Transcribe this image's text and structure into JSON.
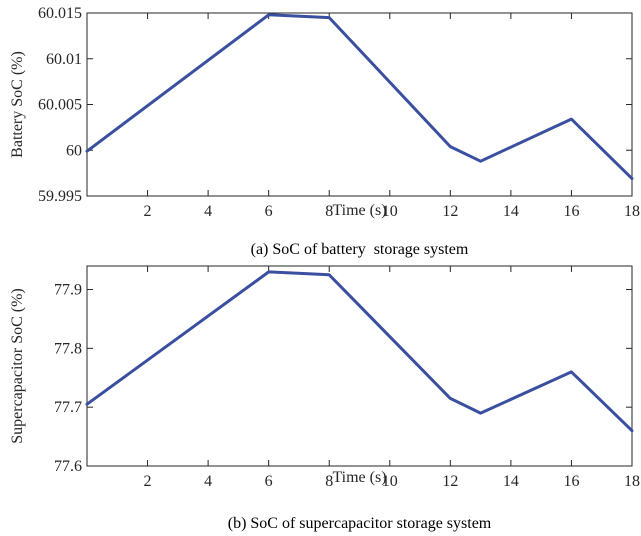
{
  "chart_data": [
    {
      "type": "line",
      "caption": "(a) SoC of battery  storage system",
      "xlabel": "Time (s)",
      "ylabel": "Battery SoC (%)",
      "xlim": [
        0,
        18
      ],
      "ylim": [
        59.995,
        60.015
      ],
      "xticks": [
        "2",
        "4",
        "6",
        "8",
        "10",
        "12",
        "14",
        "16",
        "18"
      ],
      "yticks": [
        "59.995",
        "60",
        "60.005",
        "60.01",
        "60.015"
      ],
      "grid": false,
      "series": [
        {
          "color": "#3a4fa0",
          "x": [
            0,
            6,
            8,
            12,
            13,
            16,
            18
          ],
          "y": [
            59.9999,
            60.0148,
            60.0145,
            60.0004,
            59.9988,
            60.0034,
            59.9969
          ]
        }
      ]
    },
    {
      "type": "line",
      "caption": "(b) SoC of supercapacitor storage system",
      "xlabel": "Time (s)",
      "ylabel": "Supercapacitor SoC (%)",
      "xlim": [
        0,
        18
      ],
      "ylim": [
        77.6,
        77.94
      ],
      "xticks": [
        "2",
        "4",
        "6",
        "8",
        "10",
        "12",
        "14",
        "16",
        "18"
      ],
      "yticks": [
        "77.6",
        "77.7",
        "77.8",
        "77.9"
      ],
      "grid": false,
      "series": [
        {
          "color": "#3a4fa0",
          "x": [
            0,
            6,
            8,
            12,
            13,
            16,
            18
          ],
          "y": [
            77.705,
            77.93,
            77.925,
            77.715,
            77.69,
            77.76,
            77.66
          ]
        }
      ]
    }
  ]
}
